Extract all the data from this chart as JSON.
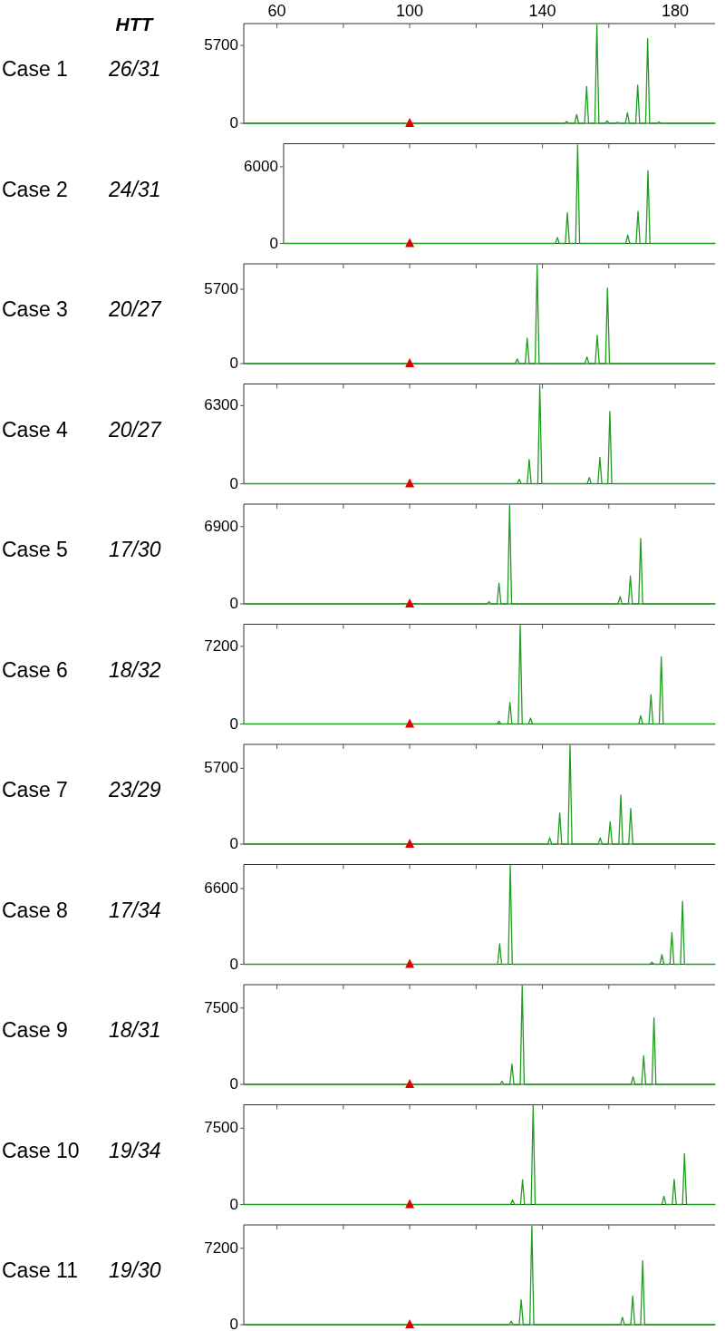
{
  "chart_data": [
    {
      "type": "line",
      "ylabel": "Case 1",
      "annotations": [
        "HTT",
        "26/31"
      ],
      "xlim": [
        50,
        192
      ],
      "xticks": [
        60,
        {
          "value": 80,
          "label": null
        },
        100,
        {
          "value": 120,
          "label": null
        },
        140,
        {
          "value": 160,
          "label": null
        },
        180
      ],
      "ylim": [
        0,
        7300
      ],
      "yticks": [
        0,
        5700
      ],
      "series": [
        {
          "color": "#1e9e1e",
          "x": [
            50,
            146.7,
            147.3,
            147.9,
            149.7,
            150.3,
            150.9,
            152.7,
            153.3,
            153.9,
            155.8,
            156.4,
            157.0,
            158.9,
            159.5,
            160.1,
            162.0,
            162.6,
            163.2,
            165.0,
            165.6,
            166.2,
            168.1,
            168.7,
            169.3,
            171.1,
            171.7,
            172.3,
            174.5,
            175.1,
            175.7,
            192
          ],
          "values": [
            0,
            0,
            130,
            0,
            0,
            640,
            0,
            0,
            2700,
            0,
            0,
            7200,
            0,
            0,
            180,
            0,
            0,
            80,
            0,
            0,
            770,
            0,
            0,
            2800,
            0,
            0,
            6200,
            0,
            0,
            100,
            0,
            0
          ]
        },
        {
          "type": "scatter",
          "marker": "triangle",
          "color": "#e00000",
          "x": [
            100
          ],
          "values": [
            0
          ]
        }
      ]
    },
    {
      "type": "line",
      "ylabel": "Case 2",
      "annotations": [
        "24/31"
      ],
      "tick_labels": "y",
      "xlim": [
        62,
        192
      ],
      "xticks": [
        {
          "value": 80,
          "label": null
        },
        100,
        {
          "value": 120,
          "label": null
        },
        140,
        {
          "value": 160,
          "label": null
        },
        180
      ],
      "ylim": [
        0,
        7800
      ],
      "yticks": [
        0,
        6000
      ],
      "series": [
        {
          "color": "#1e9e1e",
          "x": [
            62,
            143.9,
            144.5,
            145.1,
            146.9,
            147.5,
            148.1,
            150.0,
            150.6,
            151.2,
            165.1,
            165.7,
            166.3,
            168.2,
            168.8,
            169.4,
            171.2,
            171.8,
            172.4,
            192
          ],
          "values": [
            0,
            0,
            470,
            0,
            0,
            2400,
            0,
            0,
            7700,
            0,
            0,
            660,
            0,
            0,
            2500,
            0,
            0,
            5700,
            0,
            0
          ]
        },
        {
          "type": "scatter",
          "marker": "triangle",
          "color": "#e00000",
          "x": [
            100
          ],
          "values": [
            0
          ]
        }
      ]
    },
    {
      "type": "line",
      "ylabel": "Case 3",
      "annotations": [
        "20/27"
      ],
      "tick_labels": "y",
      "xlim": [
        50,
        192
      ],
      "xticks": [
        60,
        {
          "value": 80,
          "label": null
        },
        100,
        {
          "value": 120,
          "label": null
        },
        140,
        {
          "value": 160,
          "label": null
        },
        180
      ],
      "ylim": [
        0,
        7650
      ],
      "yticks": [
        0,
        5700
      ],
      "series": [
        {
          "color": "#1e9e1e",
          "x": [
            50,
            131.8,
            132.4,
            133.0,
            134.8,
            135.4,
            136.0,
            137.8,
            138.4,
            139.0,
            152.8,
            153.4,
            154.0,
            155.9,
            156.5,
            157.1,
            159.0,
            159.6,
            160.2,
            192
          ],
          "values": [
            0,
            0,
            350,
            0,
            0,
            1950,
            0,
            0,
            7550,
            0,
            0,
            510,
            0,
            0,
            2170,
            0,
            0,
            5800,
            0,
            0
          ]
        },
        {
          "type": "scatter",
          "marker": "triangle",
          "color": "#e00000",
          "x": [
            100
          ],
          "values": [
            0
          ]
        }
      ]
    },
    {
      "type": "line",
      "ylabel": "Case 4",
      "annotations": [
        "20/27"
      ],
      "tick_labels": "y",
      "xlim": [
        50,
        192
      ],
      "xticks": [
        60,
        {
          "value": 80,
          "label": null
        },
        100,
        {
          "value": 120,
          "label": null
        },
        140,
        {
          "value": 160,
          "label": null
        },
        180
      ],
      "ylim": [
        0,
        8050
      ],
      "yticks": [
        0,
        6300
      ],
      "series": [
        {
          "color": "#1e9e1e",
          "x": [
            50,
            132.4,
            133.0,
            133.6,
            135.4,
            136.0,
            136.6,
            138.6,
            139.2,
            139.8,
            153.5,
            154.1,
            154.7,
            156.7,
            157.3,
            157.9,
            159.7,
            160.3,
            160.9,
            192
          ],
          "values": [
            0,
            0,
            360,
            0,
            0,
            1960,
            0,
            0,
            7950,
            0,
            0,
            500,
            0,
            0,
            2130,
            0,
            0,
            5830,
            0,
            0
          ]
        },
        {
          "type": "scatter",
          "marker": "triangle",
          "color": "#e00000",
          "x": [
            100
          ],
          "values": [
            0
          ]
        }
      ]
    },
    {
      "type": "line",
      "ylabel": "Case 5",
      "annotations": [
        "17/30"
      ],
      "tick_labels": "y",
      "xlim": [
        50,
        192
      ],
      "xticks": [
        60,
        {
          "value": 80,
          "label": null
        },
        100,
        {
          "value": 120,
          "label": null
        },
        140,
        {
          "value": 160,
          "label": null
        },
        180
      ],
      "ylim": [
        0,
        8900
      ],
      "yticks": [
        0,
        6900
      ],
      "series": [
        {
          "color": "#1e9e1e",
          "x": [
            50,
            123.3,
            123.9,
            124.5,
            126.3,
            126.9,
            127.5,
            129.5,
            130.1,
            130.7,
            162.8,
            163.4,
            164.0,
            165.9,
            166.5,
            167.1,
            169.0,
            169.6,
            170.2,
            192
          ],
          "values": [
            0,
            0,
            190,
            0,
            0,
            1840,
            0,
            0,
            8800,
            0,
            0,
            660,
            0,
            0,
            2470,
            0,
            0,
            5840,
            0,
            0
          ]
        },
        {
          "type": "scatter",
          "marker": "triangle",
          "color": "#e00000",
          "x": [
            100
          ],
          "values": [
            0
          ]
        }
      ]
    },
    {
      "type": "line",
      "ylabel": "Case 6",
      "annotations": [
        "18/32"
      ],
      "tick_labels": "y",
      "xlim": [
        50,
        192
      ],
      "xticks": [
        60,
        {
          "value": 80,
          "label": null
        },
        100,
        {
          "value": 120,
          "label": null
        },
        140,
        {
          "value": 160,
          "label": null
        },
        180
      ],
      "ylim": [
        0,
        9250
      ],
      "yticks": [
        0,
        7200
      ],
      "series": [
        {
          "color": "#1e9e1e",
          "x": [
            50,
            126.3,
            126.9,
            127.5,
            129.6,
            130.2,
            130.8,
            132.7,
            133.3,
            133.9,
            135.8,
            136.4,
            137.0,
            169.0,
            169.6,
            170.2,
            172.1,
            172.7,
            173.3,
            175.2,
            175.8,
            176.4,
            192
          ],
          "values": [
            0,
            0,
            260,
            0,
            0,
            2000,
            0,
            0,
            9150,
            0,
            0,
            550,
            0,
            0,
            770,
            0,
            0,
            2710,
            0,
            0,
            6230,
            0,
            0
          ]
        },
        {
          "type": "scatter",
          "marker": "triangle",
          "color": "#e00000",
          "x": [
            100
          ],
          "values": [
            0
          ]
        }
      ]
    },
    {
      "type": "line",
      "ylabel": "Case 7",
      "annotations": [
        "23/29"
      ],
      "tick_labels": "y",
      "xlim": [
        50,
        192
      ],
      "xticks": [
        60,
        {
          "value": 80,
          "label": null
        },
        100,
        {
          "value": 120,
          "label": null
        },
        140,
        {
          "value": 160,
          "label": null
        },
        180
      ],
      "ylim": [
        0,
        7500
      ],
      "yticks": [
        0,
        5700
      ],
      "series": [
        {
          "color": "#1e9e1e",
          "x": [
            50,
            141.6,
            142.2,
            142.8,
            144.6,
            145.2,
            145.8,
            147.7,
            148.3,
            148.9,
            156.8,
            157.4,
            158.0,
            159.8,
            160.4,
            161.0,
            163.0,
            163.6,
            164.2,
            166.0,
            166.6,
            167.2,
            192
          ],
          "values": [
            0,
            0,
            470,
            0,
            0,
            2350,
            0,
            0,
            7450,
            0,
            0,
            470,
            0,
            0,
            1690,
            0,
            0,
            3690,
            0,
            0,
            2690,
            0,
            0
          ]
        },
        {
          "type": "scatter",
          "marker": "triangle",
          "color": "#e00000",
          "x": [
            100
          ],
          "values": [
            0
          ]
        }
      ]
    },
    {
      "type": "line",
      "ylabel": "Case 8",
      "annotations": [
        "17/34"
      ],
      "tick_labels": "y",
      "xlim": [
        50,
        192
      ],
      "xticks": [
        60,
        {
          "value": 80,
          "label": null
        },
        100,
        {
          "value": 120,
          "label": null
        },
        140,
        {
          "value": 160,
          "label": null
        },
        180
      ],
      "ylim": [
        0,
        8700
      ],
      "yticks": [
        0,
        6600
      ],
      "series": [
        {
          "color": "#1e9e1e",
          "x": [
            50,
            126.5,
            127.1,
            127.7,
            129.7,
            130.3,
            130.9,
            172.4,
            173.0,
            173.6,
            175.4,
            176.0,
            176.6,
            178.4,
            179.0,
            179.6,
            181.6,
            182.2,
            182.8,
            192
          ],
          "values": [
            0,
            0,
            1780,
            0,
            0,
            8600,
            0,
            0,
            180,
            0,
            0,
            830,
            0,
            0,
            2760,
            0,
            0,
            5490,
            0,
            0
          ]
        },
        {
          "type": "scatter",
          "marker": "triangle",
          "color": "#e00000",
          "x": [
            100
          ],
          "values": [
            0
          ]
        }
      ]
    },
    {
      "type": "line",
      "ylabel": "Case 9",
      "annotations": [
        "18/31"
      ],
      "tick_labels": "y",
      "xlim": [
        50,
        192
      ],
      "xticks": [
        60,
        {
          "value": 80,
          "label": null
        },
        100,
        {
          "value": 120,
          "label": null
        },
        140,
        {
          "value": 160,
          "label": null
        },
        180
      ],
      "ylim": [
        0,
        9800
      ],
      "yticks": [
        0,
        7500
      ],
      "series": [
        {
          "color": "#1e9e1e",
          "x": [
            50,
            127.2,
            127.8,
            128.4,
            130.2,
            130.8,
            131.4,
            133.3,
            133.9,
            134.5,
            166.7,
            167.3,
            167.9,
            169.9,
            170.5,
            171.1,
            173.0,
            173.6,
            174.2,
            192
          ],
          "values": [
            0,
            0,
            310,
            0,
            0,
            2020,
            0,
            0,
            9700,
            0,
            0,
            750,
            0,
            0,
            2810,
            0,
            0,
            6540,
            0,
            0
          ]
        },
        {
          "type": "scatter",
          "marker": "triangle",
          "color": "#e00000",
          "x": [
            100
          ],
          "values": [
            0
          ]
        }
      ]
    },
    {
      "type": "line",
      "ylabel": "Case 10",
      "annotations": [
        "19/34"
      ],
      "tick_labels": "y",
      "xlim": [
        50,
        192
      ],
      "xticks": [
        60,
        {
          "value": 80,
          "label": null
        },
        100,
        {
          "value": 120,
          "label": null
        },
        140,
        {
          "value": 160,
          "label": null
        },
        180
      ],
      "ylim": [
        0,
        9800
      ],
      "yticks": [
        0,
        7500
      ],
      "series": [
        {
          "color": "#1e9e1e",
          "x": [
            50,
            130.4,
            131.0,
            131.6,
            133.4,
            134.0,
            134.6,
            136.6,
            137.2,
            137.8,
            176.0,
            176.6,
            177.2,
            179.1,
            179.7,
            180.3,
            182.2,
            182.8,
            183.4,
            192
          ],
          "values": [
            0,
            0,
            450,
            0,
            0,
            2430,
            0,
            0,
            9700,
            0,
            0,
            820,
            0,
            0,
            2470,
            0,
            0,
            5000,
            0,
            0
          ]
        },
        {
          "type": "scatter",
          "marker": "triangle",
          "color": "#e00000",
          "x": [
            100
          ],
          "values": [
            0
          ]
        }
      ]
    },
    {
      "type": "line",
      "ylabel": "Case 11",
      "annotations": [
        "19/30"
      ],
      "tick_labels": "y",
      "xlim": [
        50,
        192
      ],
      "xticks": [
        60,
        {
          "value": 80,
          "label": null
        },
        100,
        {
          "value": 120,
          "label": null
        },
        140,
        {
          "value": 160,
          "label": null
        },
        180
      ],
      "ylim": [
        0,
        9400
      ],
      "yticks": [
        0,
        7200
      ],
      "series": [
        {
          "color": "#1e9e1e",
          "x": [
            50,
            130.0,
            130.6,
            131.2,
            133.0,
            133.6,
            134.2,
            136.2,
            136.8,
            137.4,
            163.5,
            164.1,
            164.7,
            166.6,
            167.2,
            167.8,
            169.6,
            170.2,
            170.8,
            192
          ],
          "values": [
            0,
            0,
            330,
            0,
            0,
            2340,
            0,
            0,
            9280,
            0,
            0,
            690,
            0,
            0,
            2700,
            0,
            0,
            6020,
            0,
            0
          ]
        },
        {
          "type": "scatter",
          "marker": "triangle",
          "color": "#e00000",
          "x": [
            100
          ],
          "values": [
            0
          ]
        }
      ]
    }
  ]
}
